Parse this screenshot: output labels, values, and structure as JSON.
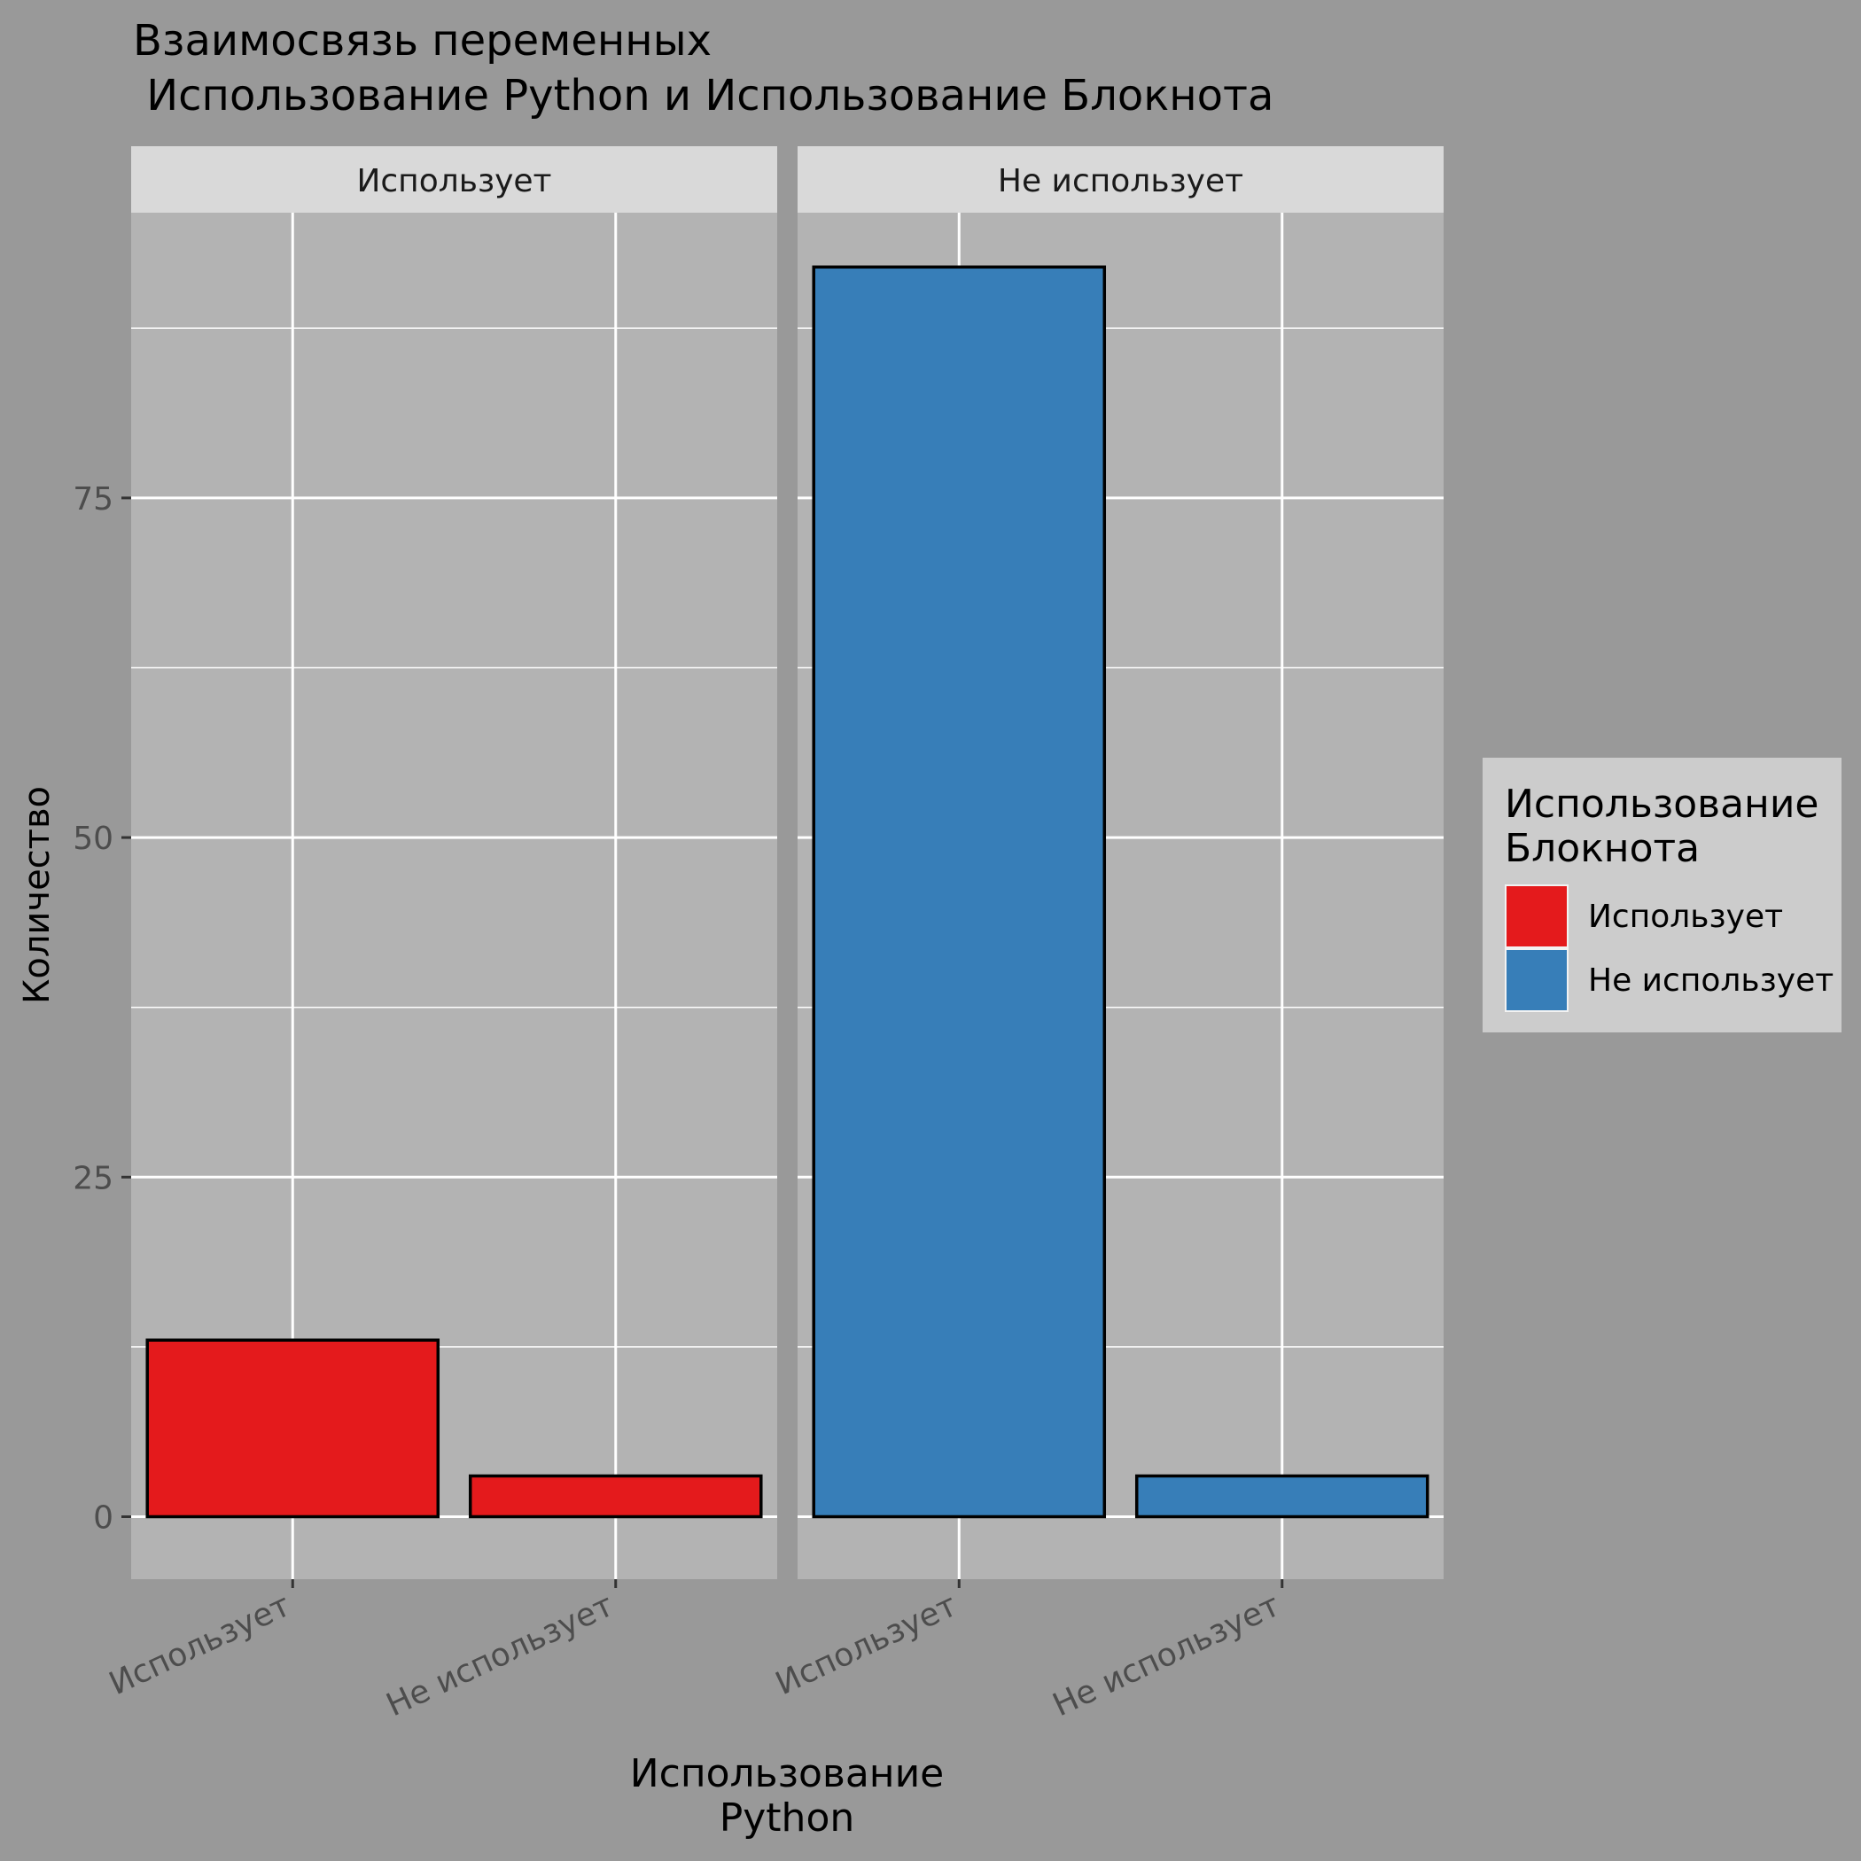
{
  "chart_data": {
    "type": "bar",
    "title_line1": "Взаимосвязь переменных",
    "title_line2": " Использование Python и Использование Блокнота",
    "xlabel_line1": "Использование",
    "xlabel_line2": "Python",
    "ylabel": "Количество",
    "y_ticks": [
      0,
      25,
      50,
      75
    ],
    "ylim": [
      -4.6,
      96
    ],
    "grid": true,
    "categories": [
      "Использует",
      "Не использует"
    ],
    "facets": [
      {
        "label": "Использует",
        "values": [
          13,
          3
        ],
        "color": "#E41A1C"
      },
      {
        "label": "Не использует",
        "values": [
          92,
          3
        ],
        "color": "#377EB8"
      }
    ],
    "legend": {
      "title_line1": "Использование",
      "title_line2": "Блокнота",
      "position": "right",
      "items": [
        {
          "label": "Использует",
          "color": "#E41A1C"
        },
        {
          "label": "Не использует",
          "color": "#377EB8"
        }
      ]
    }
  }
}
